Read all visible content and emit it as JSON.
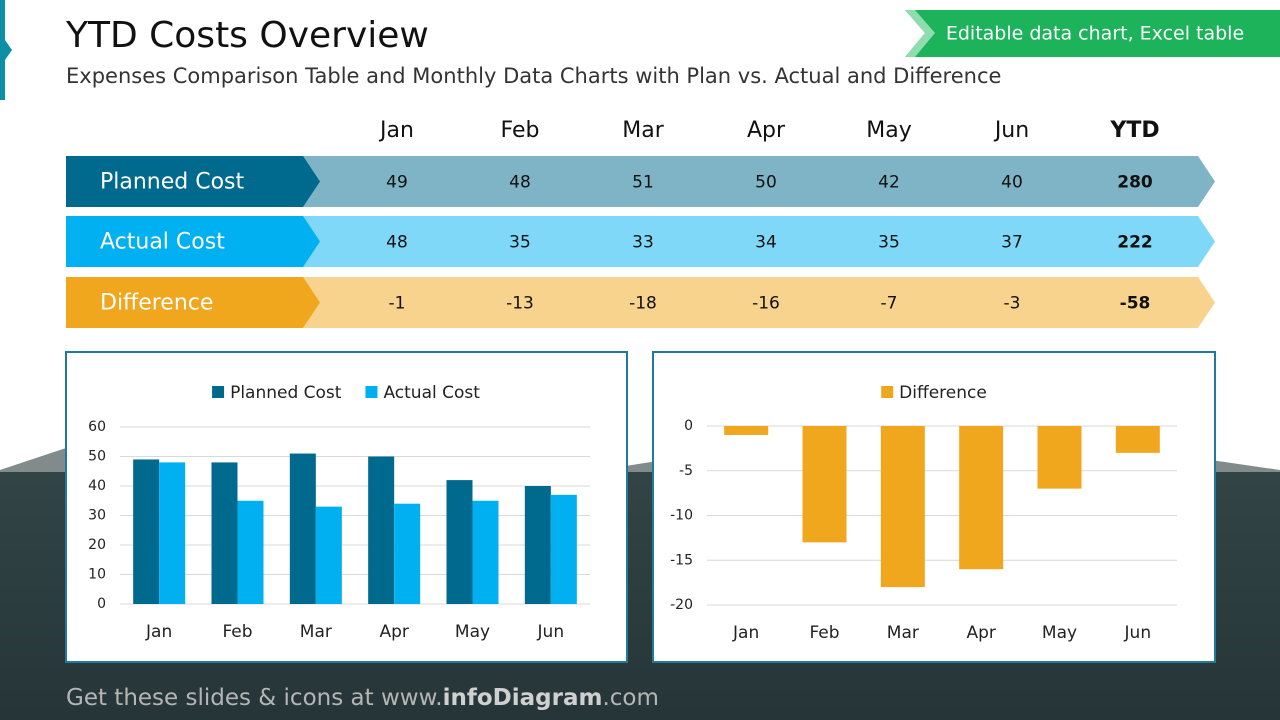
{
  "header": {
    "title": "YTD Costs Overview",
    "subtitle": "Expenses Comparison Table and Monthly Data Charts with Plan vs. Actual and Difference",
    "badge": "Editable data chart, Excel table"
  },
  "table": {
    "columns": [
      "Jan",
      "Feb",
      "Mar",
      "Apr",
      "May",
      "Jun",
      "YTD"
    ],
    "rows": [
      {
        "label": "Planned Cost",
        "values": [
          49,
          48,
          51,
          50,
          42,
          40,
          280
        ]
      },
      {
        "label": "Actual Cost",
        "values": [
          48,
          35,
          33,
          34,
          35,
          37,
          222
        ]
      },
      {
        "label": "Difference",
        "values": [
          -1,
          -13,
          -18,
          -16,
          -7,
          -3,
          -58
        ]
      }
    ]
  },
  "chart_data": [
    {
      "type": "bar",
      "categories": [
        "Jan",
        "Feb",
        "Mar",
        "Apr",
        "May",
        "Jun"
      ],
      "series": [
        {
          "name": "Planned Cost",
          "color": "#006a8e",
          "values": [
            49,
            48,
            51,
            50,
            42,
            40
          ]
        },
        {
          "name": "Actual Cost",
          "color": "#00b0f0",
          "values": [
            48,
            35,
            33,
            34,
            35,
            37
          ]
        }
      ],
      "ylim": [
        0,
        60
      ],
      "yticks": [
        0,
        10,
        20,
        30,
        40,
        50,
        60
      ],
      "grid": true,
      "legend": "top"
    },
    {
      "type": "bar",
      "categories": [
        "Jan",
        "Feb",
        "Mar",
        "Apr",
        "May",
        "Jun"
      ],
      "series": [
        {
          "name": "Difference",
          "color": "#f0a71e",
          "values": [
            -1,
            -13,
            -18,
            -16,
            -7,
            -3
          ]
        }
      ],
      "ylim": [
        -20,
        0
      ],
      "yticks": [
        0,
        -5,
        -10,
        -15,
        -20
      ],
      "grid": true,
      "legend": "top"
    }
  ],
  "footer": {
    "parts": [
      "Get these slides & icons at www.",
      "infoDiagram",
      ".com"
    ]
  }
}
